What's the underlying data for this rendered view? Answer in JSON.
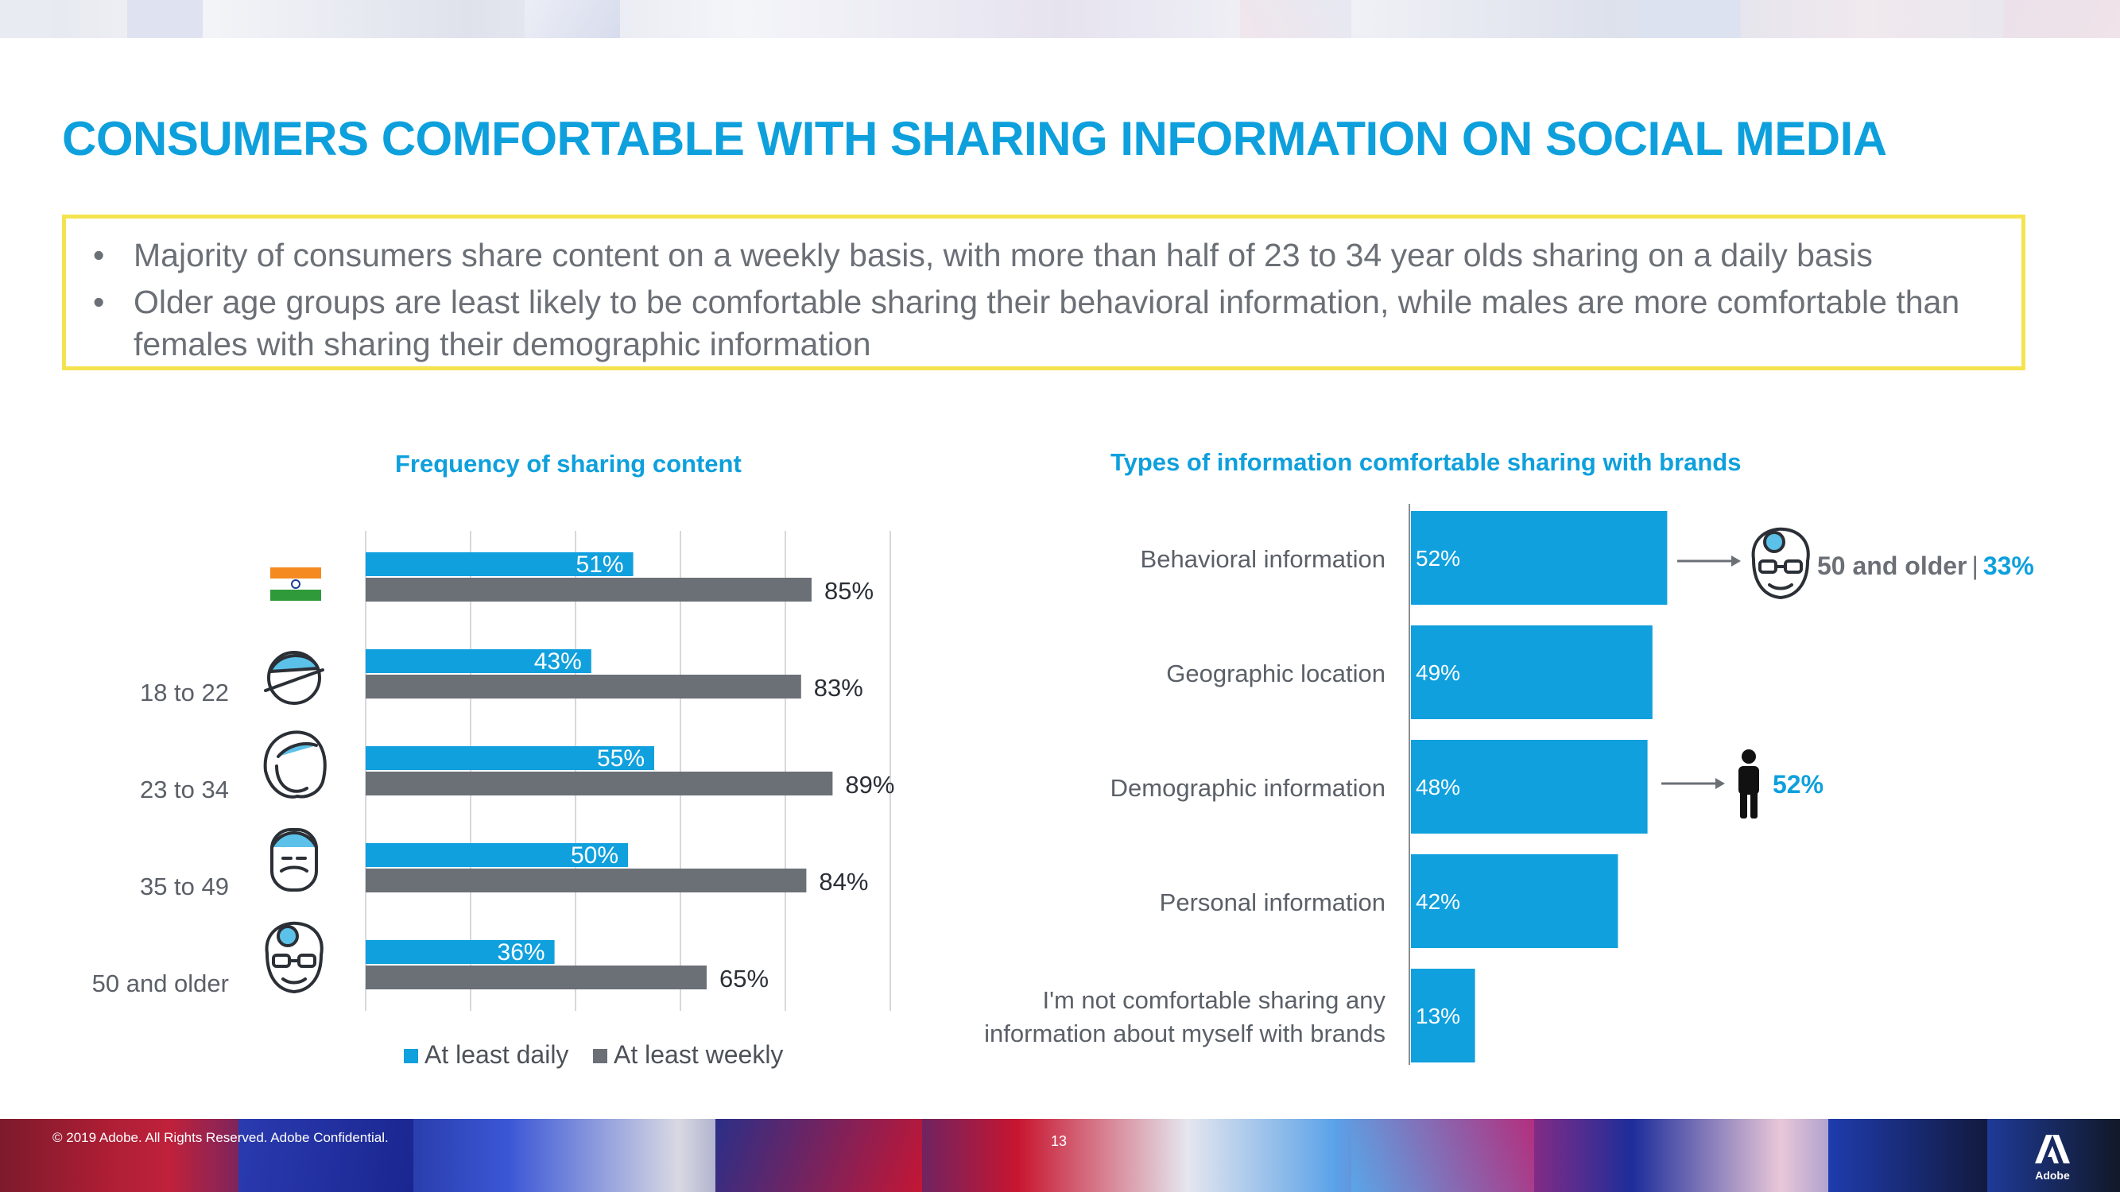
{
  "title": "CONSUMERS COMFORTABLE WITH SHARING INFORMATION ON SOCIAL MEDIA",
  "callout": {
    "bullet": "•",
    "points": [
      "Majority of consumers share content on a weekly basis, with more than half of 23 to 34 year olds sharing on a daily basis",
      "Older age groups are least likely to be comfortable sharing their behavioral information, while males are more comfortable than females with sharing their demographic information"
    ]
  },
  "chart_data": [
    {
      "type": "bar",
      "title": "Frequency of sharing content",
      "orientation": "horizontal",
      "categories": [
        "India",
        "18 to 22",
        "23 to 34",
        "35 to 49",
        "50 and older"
      ],
      "category_labels": [
        "",
        "18 to 22",
        "23 to 34",
        "35 to 49",
        "50 and older"
      ],
      "series": [
        {
          "name": "At least daily",
          "values": [
            51,
            43,
            55,
            50,
            36
          ],
          "labels": [
            "51%",
            "43%",
            "55%",
            "50%",
            "36%"
          ],
          "color": "#10a0dd"
        },
        {
          "name": "At least weekly",
          "values": [
            85,
            83,
            89,
            84,
            65
          ],
          "labels": [
            "85%",
            "83%",
            "89%",
            "84%",
            "65%"
          ],
          "color": "#6b6f76"
        }
      ],
      "xlim": [
        0,
        100
      ],
      "grid": true,
      "legend": "bottom"
    },
    {
      "type": "bar",
      "title": "Types of information comfortable sharing with brands",
      "orientation": "horizontal",
      "categories": [
        "Behavioral information",
        "Geographic location",
        "Demographic information",
        "Personal information",
        "I'm not comfortable sharing any information about myself with brands"
      ],
      "category_lines": [
        [
          "Behavioral information"
        ],
        [
          "Geographic location"
        ],
        [
          "Demographic information"
        ],
        [
          "Personal information"
        ],
        [
          "I'm not comfortable sharing any",
          "information about myself with brands"
        ]
      ],
      "values": [
        52,
        49,
        48,
        42,
        13
      ],
      "labels": [
        "52%",
        "49%",
        "48%",
        "42%",
        "13%"
      ],
      "color": "#10a0dd",
      "xlim": [
        0,
        100
      ],
      "annotations": [
        {
          "category_index": 0,
          "text": "50 and older",
          "separator": "|",
          "value_label": "33%"
        },
        {
          "category_index": 2,
          "text": "",
          "separator": "",
          "value_label": "52%"
        }
      ]
    }
  ],
  "footer": {
    "copyright": "© 2019 Adobe.  All Rights Reserved.  Adobe Confidential.",
    "page_number": "13",
    "logo_text": "Adobe"
  },
  "colors": {
    "accent": "#0ea0dc",
    "grey_bar": "#6b6f76",
    "callout_border": "#f4e34f"
  }
}
